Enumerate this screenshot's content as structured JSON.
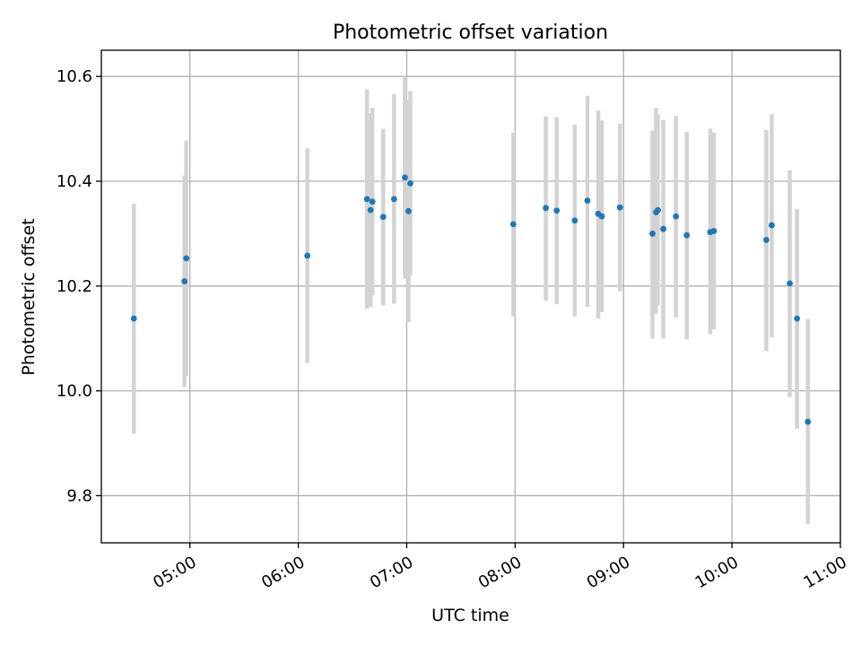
{
  "chart_data": {
    "type": "scatter",
    "title": "Photometric offset variation",
    "xlabel": "UTC time",
    "ylabel": "Photometric offset",
    "xlim": [
      "04:11",
      "11:00"
    ],
    "ylim": [
      9.71,
      10.65
    ],
    "grid": true,
    "x_ticks": [
      "05:00",
      "06:00",
      "07:00",
      "08:00",
      "09:00",
      "10:00",
      "11:00"
    ],
    "y_ticks": [
      9.8,
      10.0,
      10.2,
      10.4,
      10.6
    ],
    "y_tick_labels": [
      "9.8",
      "10.0",
      "10.2",
      "10.4",
      "10.6"
    ],
    "colors": {
      "points": "#1f77b4",
      "error_bars": "#d3d3d3",
      "grid": "#b0b0b0"
    },
    "points": [
      {
        "x": "04:29",
        "y": 10.138,
        "ylo": 9.918,
        "yhi": 10.357
      },
      {
        "x": "04:57",
        "y": 10.209,
        "ylo": 10.007,
        "yhi": 10.411
      },
      {
        "x": "04:58",
        "y": 10.253,
        "ylo": 10.028,
        "yhi": 10.478
      },
      {
        "x": "06:05",
        "y": 10.258,
        "ylo": 10.053,
        "yhi": 10.463
      },
      {
        "x": "06:38",
        "y": 10.366,
        "ylo": 10.157,
        "yhi": 10.575
      },
      {
        "x": "06:40",
        "y": 10.345,
        "ylo": 10.16,
        "yhi": 10.53
      },
      {
        "x": "06:41",
        "y": 10.361,
        "ylo": 10.182,
        "yhi": 10.54
      },
      {
        "x": "06:47",
        "y": 10.332,
        "ylo": 10.163,
        "yhi": 10.5
      },
      {
        "x": "06:53",
        "y": 10.366,
        "ylo": 10.166,
        "yhi": 10.566
      },
      {
        "x": "06:59",
        "y": 10.407,
        "ylo": 10.214,
        "yhi": 10.6
      },
      {
        "x": "07:01",
        "y": 10.343,
        "ylo": 10.131,
        "yhi": 10.555
      },
      {
        "x": "07:02",
        "y": 10.396,
        "ylo": 10.22,
        "yhi": 10.572
      },
      {
        "x": "07:59",
        "y": 10.318,
        "ylo": 10.142,
        "yhi": 10.493
      },
      {
        "x": "08:17",
        "y": 10.349,
        "ylo": 10.172,
        "yhi": 10.524
      },
      {
        "x": "08:23",
        "y": 10.344,
        "ylo": 10.165,
        "yhi": 10.522
      },
      {
        "x": "08:33",
        "y": 10.325,
        "ylo": 10.142,
        "yhi": 10.508
      },
      {
        "x": "08:40",
        "y": 10.363,
        "ylo": 10.16,
        "yhi": 10.563
      },
      {
        "x": "08:46",
        "y": 10.338,
        "ylo": 10.138,
        "yhi": 10.535
      },
      {
        "x": "08:48",
        "y": 10.333,
        "ylo": 10.15,
        "yhi": 10.516
      },
      {
        "x": "08:58",
        "y": 10.35,
        "ylo": 10.19,
        "yhi": 10.51
      },
      {
        "x": "09:16",
        "y": 10.3,
        "ylo": 10.1,
        "yhi": 10.497
      },
      {
        "x": "09:18",
        "y": 10.341,
        "ylo": 10.147,
        "yhi": 10.54
      },
      {
        "x": "09:19",
        "y": 10.345,
        "ylo": 10.163,
        "yhi": 10.528
      },
      {
        "x": "09:22",
        "y": 10.309,
        "ylo": 10.1,
        "yhi": 10.517
      },
      {
        "x": "09:29",
        "y": 10.333,
        "ylo": 10.14,
        "yhi": 10.525
      },
      {
        "x": "09:35",
        "y": 10.297,
        "ylo": 10.098,
        "yhi": 10.494
      },
      {
        "x": "09:48",
        "y": 10.303,
        "ylo": 10.108,
        "yhi": 10.5
      },
      {
        "x": "09:50",
        "y": 10.305,
        "ylo": 10.117,
        "yhi": 10.493
      },
      {
        "x": "10:19",
        "y": 10.288,
        "ylo": 10.076,
        "yhi": 10.498
      },
      {
        "x": "10:22",
        "y": 10.316,
        "ylo": 10.102,
        "yhi": 10.528
      },
      {
        "x": "10:32",
        "y": 10.205,
        "ylo": 9.988,
        "yhi": 10.421
      },
      {
        "x": "10:36",
        "y": 10.138,
        "ylo": 9.928,
        "yhi": 10.347
      },
      {
        "x": "10:42",
        "y": 9.941,
        "ylo": 9.745,
        "yhi": 10.137
      }
    ]
  }
}
